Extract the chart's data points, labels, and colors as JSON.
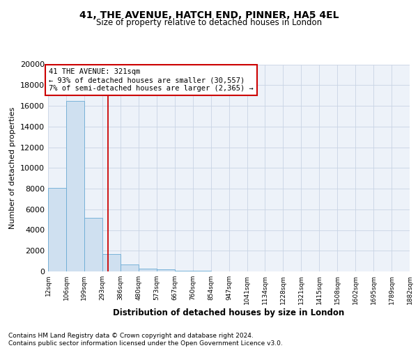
{
  "title": "41, THE AVENUE, HATCH END, PINNER, HA5 4EL",
  "subtitle": "Size of property relative to detached houses in London",
  "xlabel": "Distribution of detached houses by size in London",
  "ylabel": "Number of detached properties",
  "footer_line1": "Contains HM Land Registry data © Crown copyright and database right 2024.",
  "footer_line2": "Contains public sector information licensed under the Open Government Licence v3.0.",
  "bar_color": "#cfe0f0",
  "bar_edge_color": "#6aaad4",
  "annotation_line1": "41 THE AVENUE: 321sqm",
  "annotation_line2": "← 93% of detached houses are smaller (30,557)",
  "annotation_line3": "7% of semi-detached houses are larger (2,365) →",
  "property_size": 321,
  "bin_edges": [
    12,
    106,
    199,
    293,
    386,
    480,
    573,
    667,
    760,
    854,
    947,
    1041,
    1134,
    1228,
    1321,
    1415,
    1508,
    1602,
    1695,
    1789,
    1882
  ],
  "bar_heights": [
    8100,
    16500,
    5200,
    1700,
    650,
    280,
    180,
    90,
    80,
    25,
    12,
    6,
    4,
    3,
    2,
    2,
    1,
    1,
    1,
    1
  ],
  "ylim": [
    0,
    20000
  ],
  "yticks": [
    0,
    2000,
    4000,
    6000,
    8000,
    10000,
    12000,
    14000,
    16000,
    18000,
    20000
  ],
  "grid_color": "#c8d4e4",
  "red_line_color": "#cc0000",
  "annotation_box_color": "#cc0000",
  "bg_color": "#edf2f9",
  "title_fontsize": 10,
  "subtitle_fontsize": 8.5,
  "ylabel_fontsize": 8,
  "xlabel_fontsize": 8.5,
  "tick_fontsize": 6.5,
  "footer_fontsize": 6.5
}
